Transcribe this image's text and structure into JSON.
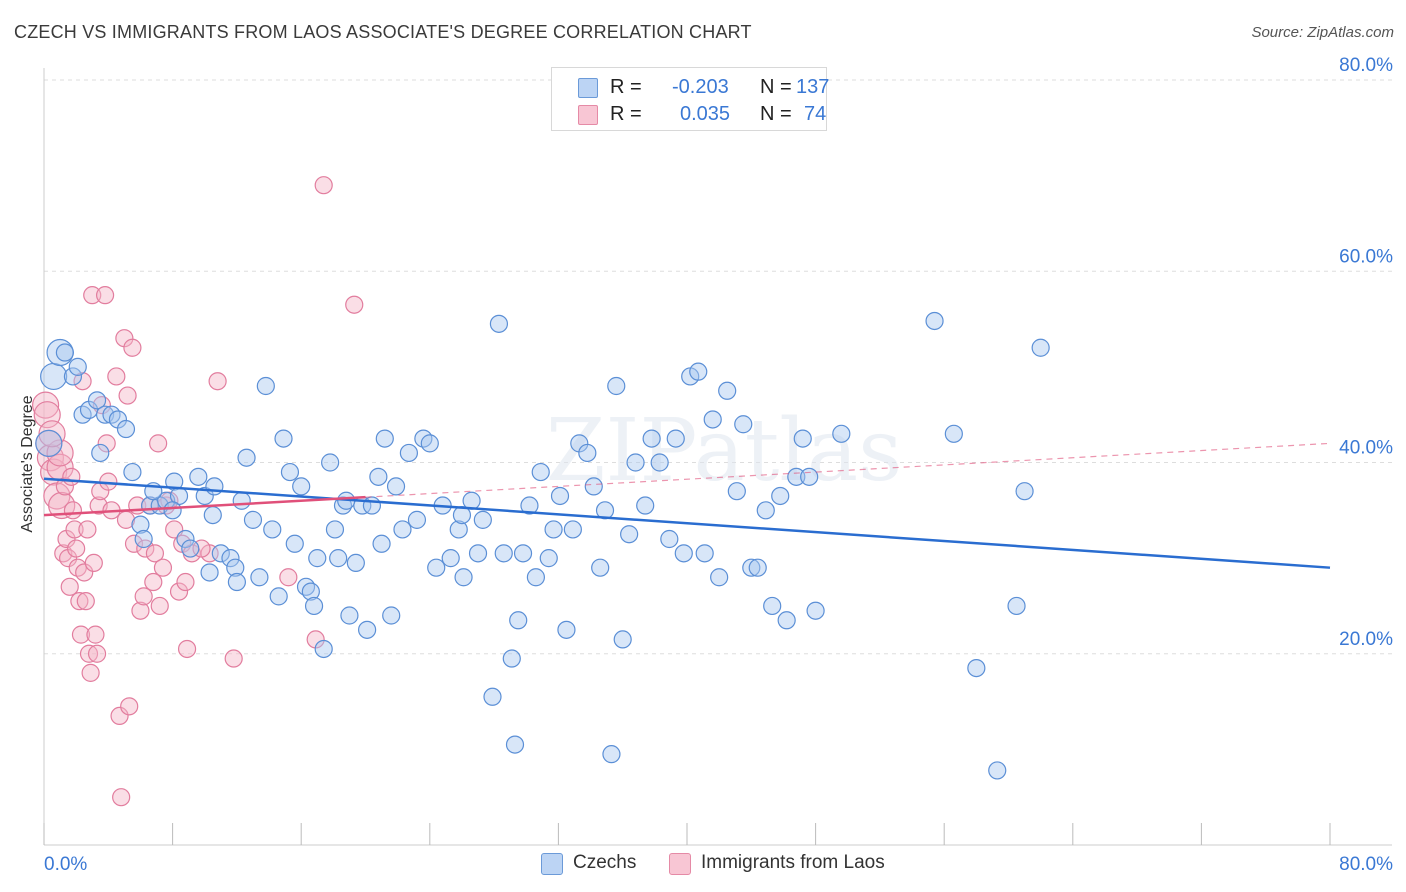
{
  "title": "CZECH VS IMMIGRANTS FROM LAOS ASSOCIATE'S DEGREE CORRELATION CHART",
  "source": "Source: ZipAtlas.com",
  "watermark": "ZIPatlas",
  "legend": {
    "rows": [
      {
        "r_label": "R =",
        "r_value": "-0.203",
        "n_label": "N =",
        "n_value": "137",
        "color": "#a9c8f0"
      },
      {
        "r_label": "R =",
        "r_value": "0.035",
        "n_label": "N =",
        "n_value": "74",
        "color": "#f4b6c8"
      }
    ]
  },
  "bottom_legend": [
    {
      "label": "Czechs",
      "color": "#a9c8f0"
    },
    {
      "label": "Immigrants from Laos",
      "color": "#f4b6c8"
    }
  ],
  "colors": {
    "blue_fill": "#a9c8f0",
    "blue_stroke": "#5b8fd6",
    "blue_line": "#2a6dd0",
    "pink_fill": "#f4b6c8",
    "pink_stroke": "#e27d9e",
    "pink_line": "#e0507a",
    "axis_text": "#3a78d4",
    "grid": "#dddddd"
  },
  "chart_data": {
    "type": "scatter",
    "title": "CZECH VS IMMIGRANTS FROM LAOS ASSOCIATE'S DEGREE CORRELATION CHART",
    "xlabel": "",
    "ylabel": "Associate's Degree",
    "xlim": [
      0,
      80
    ],
    "ylim": [
      0,
      80
    ],
    "x_tick_labels": [
      "0.0%",
      "80.0%"
    ],
    "y_tick_labels": [
      "20.0%",
      "40.0%",
      "60.0%",
      "80.0%"
    ],
    "y_ticks": [
      20,
      40,
      60,
      80
    ],
    "grid": true,
    "legend_position": "top-center",
    "series": [
      {
        "name": "Czechs",
        "r": -0.203,
        "n": 137,
        "trend": {
          "x": [
            0,
            80
          ],
          "y": [
            38.3,
            29.0
          ],
          "solid_until": 80
        },
        "points": [
          [
            0.3,
            42.0
          ],
          [
            0.6,
            49.0
          ],
          [
            1.0,
            51.5
          ],
          [
            1.3,
            51.5
          ],
          [
            1.8,
            49.0
          ],
          [
            2.1,
            50.0
          ],
          [
            2.4,
            45.0
          ],
          [
            2.8,
            45.5
          ],
          [
            3.3,
            46.5
          ],
          [
            3.5,
            41.0
          ],
          [
            3.8,
            45.0
          ],
          [
            4.2,
            45.0
          ],
          [
            4.6,
            44.5
          ],
          [
            5.1,
            43.5
          ],
          [
            5.5,
            39.0
          ],
          [
            6.0,
            33.5
          ],
          [
            6.2,
            32.0
          ],
          [
            6.6,
            35.5
          ],
          [
            7.2,
            35.5
          ],
          [
            7.6,
            36.0
          ],
          [
            8.1,
            38.0
          ],
          [
            8.4,
            36.5
          ],
          [
            8.8,
            32.0
          ],
          [
            9.1,
            31.0
          ],
          [
            9.6,
            38.5
          ],
          [
            10.0,
            36.5
          ],
          [
            10.3,
            28.5
          ],
          [
            10.6,
            37.5
          ],
          [
            11.0,
            30.5
          ],
          [
            11.6,
            30.0
          ],
          [
            11.9,
            29.0
          ],
          [
            12.3,
            36.0
          ],
          [
            12.6,
            40.5
          ],
          [
            13.0,
            34.0
          ],
          [
            13.4,
            28.0
          ],
          [
            13.8,
            48.0
          ],
          [
            14.2,
            33.0
          ],
          [
            14.6,
            26.0
          ],
          [
            14.9,
            42.5
          ],
          [
            15.3,
            39.0
          ],
          [
            15.6,
            31.5
          ],
          [
            16.0,
            37.5
          ],
          [
            16.3,
            27.0
          ],
          [
            16.6,
            26.5
          ],
          [
            17.0,
            30.0
          ],
          [
            17.4,
            20.5
          ],
          [
            17.8,
            40.0
          ],
          [
            18.1,
            33.0
          ],
          [
            18.3,
            30.0
          ],
          [
            18.6,
            35.5
          ],
          [
            19.0,
            24.0
          ],
          [
            19.4,
            29.5
          ],
          [
            19.8,
            35.5
          ],
          [
            20.1,
            22.5
          ],
          [
            20.4,
            35.5
          ],
          [
            20.8,
            38.5
          ],
          [
            21.2,
            42.5
          ],
          [
            21.6,
            24.0
          ],
          [
            21.9,
            37.5
          ],
          [
            22.3,
            33.0
          ],
          [
            22.7,
            41.0
          ],
          [
            23.2,
            34.0
          ],
          [
            23.6,
            42.5
          ],
          [
            24.0,
            42.0
          ],
          [
            24.4,
            29.0
          ],
          [
            24.8,
            35.5
          ],
          [
            25.3,
            30.0
          ],
          [
            25.8,
            33.0
          ],
          [
            26.1,
            28.0
          ],
          [
            26.6,
            36.0
          ],
          [
            27.0,
            30.5
          ],
          [
            27.3,
            34.0
          ],
          [
            27.9,
            15.5
          ],
          [
            28.3,
            54.5
          ],
          [
            28.6,
            30.5
          ],
          [
            29.1,
            19.5
          ],
          [
            29.5,
            23.5
          ],
          [
            29.8,
            30.5
          ],
          [
            30.2,
            35.5
          ],
          [
            30.6,
            28.0
          ],
          [
            30.9,
            39.0
          ],
          [
            31.4,
            30.0
          ],
          [
            31.7,
            33.0
          ],
          [
            32.1,
            36.5
          ],
          [
            32.5,
            22.5
          ],
          [
            32.9,
            33.0
          ],
          [
            33.3,
            42.0
          ],
          [
            33.8,
            41.0
          ],
          [
            34.2,
            37.5
          ],
          [
            34.6,
            29.0
          ],
          [
            34.9,
            35.0
          ],
          [
            35.3,
            9.5
          ],
          [
            35.6,
            48.0
          ],
          [
            36.0,
            21.5
          ],
          [
            36.4,
            32.5
          ],
          [
            36.8,
            40.0
          ],
          [
            37.4,
            35.5
          ],
          [
            37.8,
            42.5
          ],
          [
            38.3,
            40.0
          ],
          [
            38.9,
            32.0
          ],
          [
            39.3,
            42.5
          ],
          [
            39.8,
            30.5
          ],
          [
            40.2,
            49.0
          ],
          [
            40.7,
            49.5
          ],
          [
            41.1,
            30.5
          ],
          [
            41.6,
            44.5
          ],
          [
            42.0,
            28.0
          ],
          [
            42.5,
            47.5
          ],
          [
            43.1,
            37.0
          ],
          [
            43.5,
            44.0
          ],
          [
            44.0,
            29.0
          ],
          [
            44.4,
            29.0
          ],
          [
            44.9,
            35.0
          ],
          [
            45.3,
            25.0
          ],
          [
            45.8,
            36.5
          ],
          [
            46.2,
            23.5
          ],
          [
            46.8,
            38.5
          ],
          [
            47.2,
            42.5
          ],
          [
            47.6,
            38.5
          ],
          [
            48.0,
            24.5
          ],
          [
            49.6,
            43.0
          ],
          [
            55.4,
            54.8
          ],
          [
            56.6,
            43.0
          ],
          [
            58.0,
            18.5
          ],
          [
            59.3,
            7.8
          ],
          [
            60.5,
            25.0
          ],
          [
            61.0,
            37.0
          ],
          [
            62.0,
            52.0
          ],
          [
            29.3,
            10.5
          ],
          [
            10.5,
            34.5
          ],
          [
            8.0,
            35.0
          ],
          [
            12.0,
            27.5
          ],
          [
            18.8,
            36.0
          ],
          [
            21.0,
            31.5
          ],
          [
            26.0,
            34.5
          ],
          [
            6.8,
            37.0
          ],
          [
            16.8,
            25.0
          ]
        ]
      },
      {
        "name": "Immigrants from Laos",
        "r": 0.035,
        "n": 74,
        "trend": {
          "x": [
            0,
            80
          ],
          "y": [
            34.5,
            42.0
          ],
          "solid_until": 20
        },
        "points": [
          [
            0.1,
            46.0
          ],
          [
            0.2,
            45.0
          ],
          [
            0.3,
            42.0
          ],
          [
            0.4,
            40.5
          ],
          [
            0.6,
            39.0
          ],
          [
            0.8,
            36.5
          ],
          [
            1.0,
            39.5
          ],
          [
            1.1,
            35.5
          ],
          [
            1.2,
            30.5
          ],
          [
            1.3,
            37.5
          ],
          [
            1.4,
            32.0
          ],
          [
            1.5,
            30.0
          ],
          [
            1.6,
            27.0
          ],
          [
            1.7,
            38.5
          ],
          [
            1.8,
            35.0
          ],
          [
            1.9,
            33.0
          ],
          [
            2.0,
            31.0
          ],
          [
            2.1,
            29.0
          ],
          [
            2.2,
            25.5
          ],
          [
            2.3,
            22.0
          ],
          [
            2.4,
            48.5
          ],
          [
            2.5,
            28.5
          ],
          [
            2.6,
            25.5
          ],
          [
            2.8,
            20.0
          ],
          [
            2.9,
            18.0
          ],
          [
            3.0,
            57.5
          ],
          [
            3.1,
            29.5
          ],
          [
            3.2,
            22.0
          ],
          [
            3.4,
            35.5
          ],
          [
            3.5,
            37.0
          ],
          [
            3.6,
            46.0
          ],
          [
            3.8,
            57.5
          ],
          [
            3.9,
            42.0
          ],
          [
            4.0,
            38.0
          ],
          [
            4.2,
            35.0
          ],
          [
            4.5,
            49.0
          ],
          [
            4.7,
            13.5
          ],
          [
            5.0,
            53.0
          ],
          [
            5.2,
            47.0
          ],
          [
            5.3,
            14.5
          ],
          [
            5.5,
            52.0
          ],
          [
            5.6,
            31.5
          ],
          [
            5.8,
            35.5
          ],
          [
            6.0,
            24.5
          ],
          [
            6.3,
            31.0
          ],
          [
            6.6,
            35.5
          ],
          [
            6.8,
            27.5
          ],
          [
            6.9,
            30.5
          ],
          [
            7.1,
            42.0
          ],
          [
            7.2,
            25.0
          ],
          [
            7.4,
            29.0
          ],
          [
            7.6,
            35.5
          ],
          [
            8.1,
            33.0
          ],
          [
            8.4,
            26.5
          ],
          [
            8.6,
            31.5
          ],
          [
            8.8,
            27.5
          ],
          [
            8.9,
            20.5
          ],
          [
            9.2,
            30.5
          ],
          [
            10.3,
            30.5
          ],
          [
            10.8,
            48.5
          ],
          [
            11.8,
            19.5
          ],
          [
            15.2,
            28.0
          ],
          [
            16.9,
            21.5
          ],
          [
            17.4,
            69.0
          ],
          [
            19.3,
            56.5
          ],
          [
            4.8,
            5.0
          ],
          [
            1.0,
            41.0
          ],
          [
            0.5,
            43.0
          ],
          [
            3.3,
            20.0
          ],
          [
            6.2,
            26.0
          ],
          [
            7.8,
            36.0
          ],
          [
            2.7,
            33.0
          ],
          [
            5.1,
            34.0
          ],
          [
            9.8,
            31.0
          ]
        ]
      }
    ]
  }
}
